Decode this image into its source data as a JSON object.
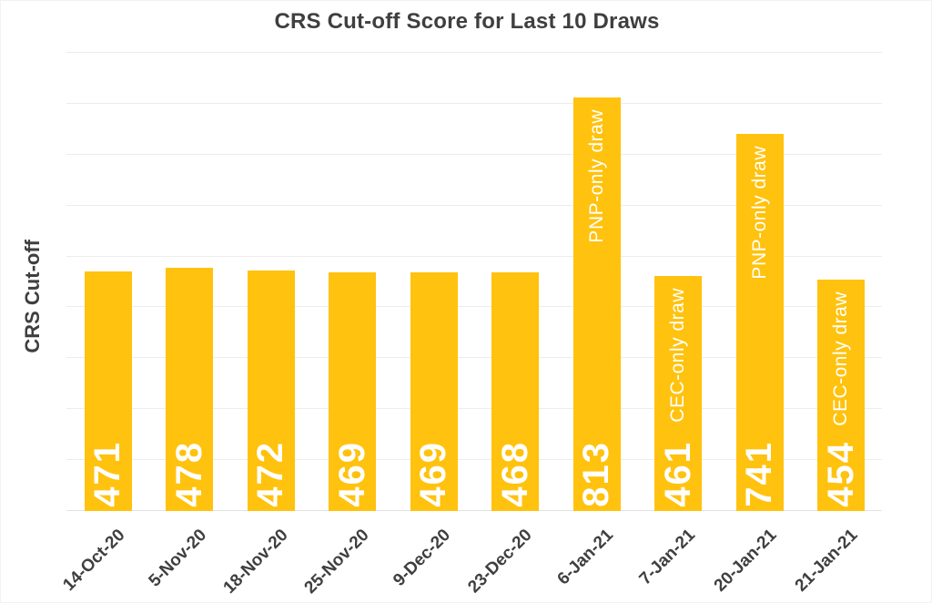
{
  "chart_data": {
    "type": "bar",
    "title": "CRS Cut-off Score for Last 10 Draws",
    "xlabel": "",
    "ylabel": "CRS Cut-off",
    "categories": [
      "14-Oct-20",
      "5-Nov-20",
      "18-Nov-20",
      "25-Nov-20",
      "9-Dec-20",
      "23-Dec-20",
      "6-Jan-21",
      "7-Jan-21",
      "20-Jan-21",
      "21-Jan-21"
    ],
    "values": [
      471,
      478,
      472,
      469,
      469,
      468,
      813,
      461,
      741,
      454
    ],
    "value_labels": [
      "471",
      "478",
      "472",
      "469",
      "469",
      "468",
      "813",
      "461",
      "741",
      "454"
    ],
    "annotations": [
      {
        "index": 6,
        "text": "PNP-only draw"
      },
      {
        "index": 7,
        "text": "CEC-only draw"
      },
      {
        "index": 8,
        "text": "PNP-only draw"
      },
      {
        "index": 9,
        "text": "CEC-only draw"
      }
    ],
    "ylim": [
      0,
      900
    ],
    "gridline_step": 100,
    "grid": true,
    "legend": false,
    "y_tick_labels_shown": false,
    "x_tick_rotation_deg": 45,
    "value_label_style": "white, bold, rotated vertical, inside bar bottom",
    "annotation_style": "white, rotated vertical, inside bar top",
    "colors": {
      "bar": "#FFC20E",
      "value_label": "#FFFFFF",
      "annotation_label": "#FFFFFF",
      "title_text": "#3F3F3F",
      "axis_text": "#3F3F3F",
      "gridline": "#ECECEC",
      "background": "#FFFFFF"
    }
  }
}
